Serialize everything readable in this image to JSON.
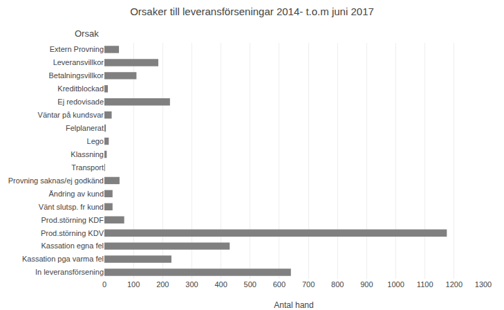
{
  "chart_data": {
    "type": "bar",
    "orientation": "horizontal",
    "title": "Orsaker till leveransförseningar 2014- t.o.m juni 2017",
    "ylabel": "Orsak",
    "xlabel": "Antal hand",
    "categories": [
      "Extern Provning",
      "Leveransvillkor",
      "Betalningsvillkor",
      "Kreditblockad",
      "Ej redovisade",
      "Väntar på kundsvar",
      "Felplanerat",
      "Lego",
      "Klassning",
      "Transport",
      "Provning saknas/ej godkänd",
      "Ändring av kund",
      "Vänt slutsp. fr kund",
      "Prod.störning KDF",
      "Prod.störning KDV",
      "Kassation egna fel",
      "Kassation pga varma fel",
      "In leveransförsening"
    ],
    "values": [
      50,
      185,
      110,
      12,
      225,
      25,
      5,
      15,
      8,
      2,
      52,
      28,
      28,
      68,
      1175,
      430,
      230,
      640
    ],
    "color": "#808080",
    "xlim": [
      0,
      1300
    ],
    "xticks": [
      0,
      100,
      200,
      300,
      400,
      500,
      600,
      700,
      800,
      900,
      1000,
      1100,
      1200,
      1300
    ],
    "grid": true
  }
}
